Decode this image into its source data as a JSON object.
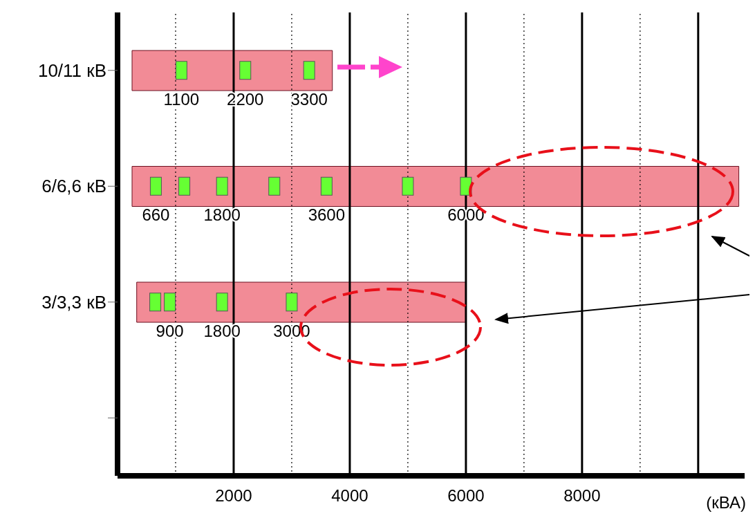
{
  "chart_data": {
    "type": "bar",
    "orientation": "horizontal",
    "xlabel": "(кВА)",
    "categories": [
      "10/11 кВ",
      "6/6,6 кВ",
      "3/3,3 кВ",
      null
    ],
    "series": [
      {
        "type": "bar",
        "color": "#f28b96",
        "base": [
          250,
          250,
          330,
          null
        ],
        "values": [
          3450,
          10450,
          5670,
          null
        ]
      },
      {
        "type": "scatter",
        "color": "#66ff33",
        "x": [
          "10/11 кВ",
          "10/11 кВ",
          "10/11 кВ",
          "6/6,6 кВ",
          "6/6,6 кВ",
          "6/6,6 кВ",
          "6/6,6 кВ",
          "6/6,6 кВ",
          "6/6,6 кВ",
          "6/6,6 кВ",
          "3/3,3 кВ",
          "3/3,3 кВ",
          "3/3,3 кВ",
          "3/3,3 кВ"
        ],
        "values": [
          1100,
          2200,
          3300,
          660,
          1150,
          1800,
          2700,
          3600,
          5000,
          6000,
          650,
          900,
          1800,
          3000
        ],
        "value_labels": [
          "1100",
          "2200",
          "3300",
          "660",
          null,
          "1800",
          null,
          "3600",
          null,
          "6000",
          null,
          "900",
          "1800",
          "3000"
        ]
      }
    ],
    "xlim": [
      0,
      10800
    ],
    "xticks": [
      2000,
      4000,
      6000,
      8000,
      {
        "value": 10000,
        "label": null
      }
    ],
    "grid": "x",
    "marker": "square",
    "ref_lines": [
      {
        "axis": "x",
        "value": 1000,
        "line_style": "dotted"
      },
      {
        "axis": "x",
        "value": 3000,
        "line_style": "dotted"
      },
      {
        "axis": "x",
        "value": 5000,
        "line_style": "dotted"
      },
      {
        "axis": "x",
        "value": 7000,
        "line_style": "dotted"
      },
      {
        "axis": "x",
        "value": 9000,
        "line_style": "dotted"
      }
    ]
  }
}
